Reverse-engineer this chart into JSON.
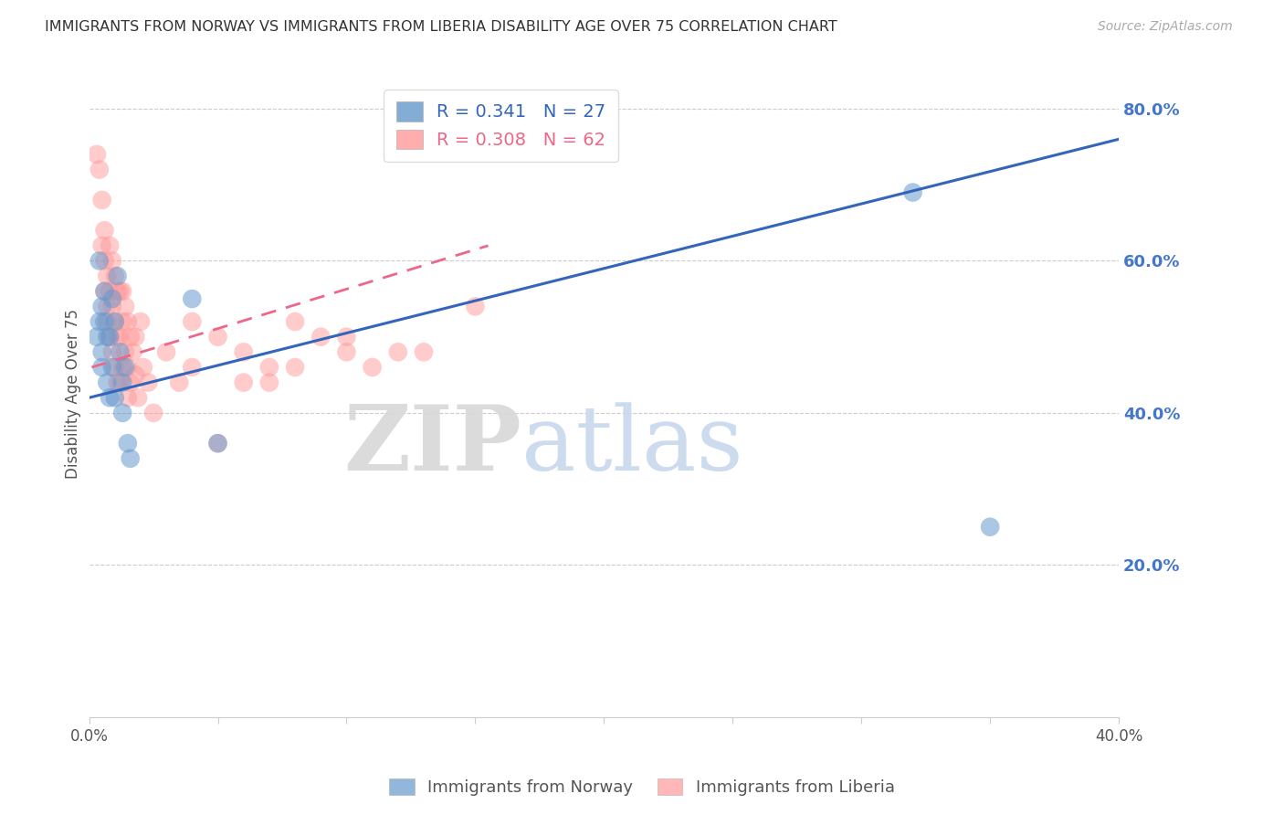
{
  "title": "IMMIGRANTS FROM NORWAY VS IMMIGRANTS FROM LIBERIA DISABILITY AGE OVER 75 CORRELATION CHART",
  "source": "Source: ZipAtlas.com",
  "ylabel": "Disability Age Over 75",
  "x_min": 0.0,
  "x_max": 0.4,
  "y_min": 0.0,
  "y_max": 0.85,
  "y_ticks_right": [
    0.2,
    0.4,
    0.6,
    0.8
  ],
  "y_tick_labels_right": [
    "20.0%",
    "40.0%",
    "60.0%",
    "80.0%"
  ],
  "norway_R": 0.341,
  "norway_N": 27,
  "liberia_R": 0.308,
  "liberia_N": 62,
  "norway_color": "#6699CC",
  "liberia_color": "#FF9999",
  "norway_line_color": "#3366BB",
  "liberia_line_color": "#EE6688",
  "norway_line_x0": 0.0,
  "norway_line_x1": 0.4,
  "norway_line_y0": 0.42,
  "norway_line_y1": 0.76,
  "liberia_line_x0": 0.001,
  "liberia_line_x1": 0.155,
  "liberia_line_y0": 0.46,
  "liberia_line_y1": 0.62,
  "norway_scatter_x": [
    0.003,
    0.004,
    0.004,
    0.005,
    0.005,
    0.005,
    0.006,
    0.006,
    0.007,
    0.007,
    0.008,
    0.008,
    0.009,
    0.009,
    0.01,
    0.01,
    0.011,
    0.012,
    0.013,
    0.013,
    0.014,
    0.015,
    0.016,
    0.04,
    0.05,
    0.32,
    0.35
  ],
  "norway_scatter_y": [
    0.5,
    0.52,
    0.6,
    0.48,
    0.54,
    0.46,
    0.52,
    0.56,
    0.44,
    0.5,
    0.5,
    0.42,
    0.55,
    0.46,
    0.52,
    0.42,
    0.58,
    0.48,
    0.44,
    0.4,
    0.46,
    0.36,
    0.34,
    0.55,
    0.36,
    0.69,
    0.25
  ],
  "liberia_scatter_x": [
    0.003,
    0.004,
    0.005,
    0.005,
    0.006,
    0.006,
    0.006,
    0.007,
    0.007,
    0.007,
    0.008,
    0.008,
    0.008,
    0.009,
    0.009,
    0.009,
    0.01,
    0.01,
    0.01,
    0.011,
    0.011,
    0.011,
    0.012,
    0.012,
    0.012,
    0.013,
    0.013,
    0.013,
    0.014,
    0.014,
    0.015,
    0.015,
    0.015,
    0.016,
    0.016,
    0.017,
    0.018,
    0.018,
    0.019,
    0.02,
    0.021,
    0.023,
    0.025,
    0.03,
    0.035,
    0.04,
    0.05,
    0.06,
    0.07,
    0.08,
    0.1,
    0.12,
    0.15,
    0.07,
    0.09,
    0.11,
    0.13,
    0.04,
    0.06,
    0.08,
    0.05,
    0.1
  ],
  "liberia_scatter_y": [
    0.74,
    0.72,
    0.68,
    0.62,
    0.64,
    0.6,
    0.56,
    0.58,
    0.54,
    0.52,
    0.62,
    0.56,
    0.5,
    0.6,
    0.54,
    0.48,
    0.58,
    0.52,
    0.46,
    0.56,
    0.5,
    0.44,
    0.56,
    0.5,
    0.44,
    0.52,
    0.46,
    0.56,
    0.54,
    0.48,
    0.52,
    0.46,
    0.42,
    0.5,
    0.44,
    0.48,
    0.5,
    0.45,
    0.42,
    0.52,
    0.46,
    0.44,
    0.4,
    0.48,
    0.44,
    0.46,
    0.5,
    0.48,
    0.44,
    0.52,
    0.5,
    0.48,
    0.54,
    0.46,
    0.5,
    0.46,
    0.48,
    0.52,
    0.44,
    0.46,
    0.36,
    0.48
  ],
  "watermark_zip": "ZIP",
  "watermark_atlas": "atlas",
  "background_color": "#FFFFFF",
  "grid_color": "#CCCCCC",
  "title_color": "#333333",
  "right_axis_color": "#4477CC",
  "legend_norway_label": "R = 0.341   N = 27",
  "legend_liberia_label": "R = 0.308   N = 62"
}
